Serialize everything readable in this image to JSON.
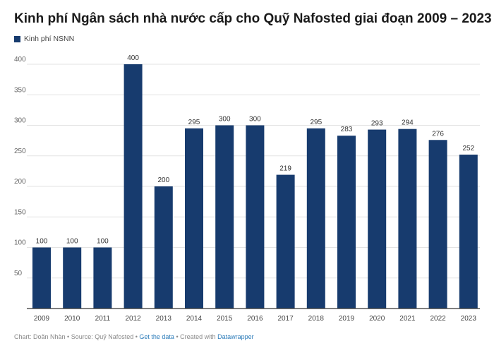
{
  "chart_data": {
    "type": "bar",
    "title": "Kinh phí Ngân sách nhà nước cấp cho Quỹ Nafosted giai đoạn 2009 – 2023",
    "series": [
      {
        "name": "Kinh phí NSNN",
        "color": "#173b6e",
        "values": [
          100,
          100,
          100,
          400,
          200,
          295,
          300,
          300,
          219,
          295,
          283,
          293,
          294,
          276,
          252
        ]
      }
    ],
    "categories": [
      "2009",
      "2010",
      "2011",
      "2012",
      "2013",
      "2014",
      "2015",
      "2016",
      "2017",
      "2018",
      "2019",
      "2020",
      "2021",
      "2022",
      "2023"
    ],
    "yticks": [
      "400",
      "350",
      "300",
      "250",
      "200",
      "150",
      "100",
      "50"
    ],
    "ylim": [
      0,
      400
    ],
    "grid": true,
    "legend_position": "top-left"
  },
  "footer": {
    "chart_by": "Chart: Doãn Nhàn",
    "sep1": " • ",
    "source": "Source: Quỹ Nafosted",
    "sep2": " • ",
    "get_data": "Get the data",
    "sep3": " • ",
    "created_with": "Created with ",
    "tool": "Datawrapper"
  },
  "colors": {
    "bar": "#173b6e",
    "grid": "#e3e3e3",
    "axis": "#333333",
    "tick_text": "#666666",
    "link": "#2b7bb9"
  }
}
